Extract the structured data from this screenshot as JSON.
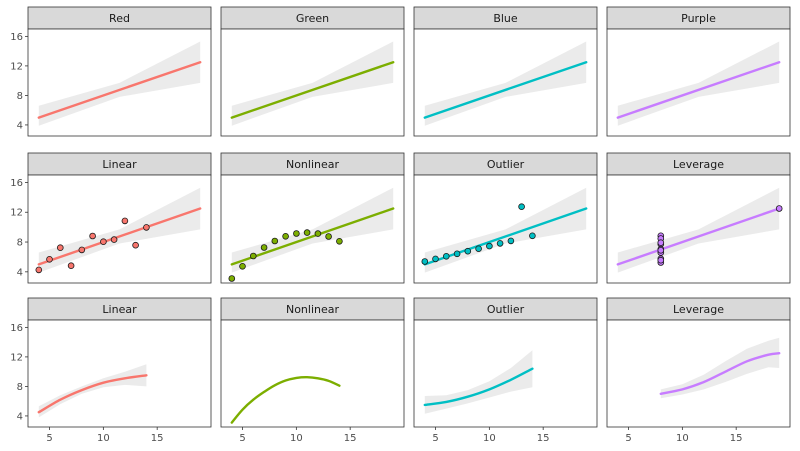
{
  "colors": {
    "red": "#F8766D",
    "green": "#7CAE00",
    "blue": "#00BFC4",
    "purple": "#C77CFF",
    "ribbon": "#EBEBEB",
    "strip": "#D9D9D9",
    "panel_border": "#333333"
  },
  "chart_data": [
    {
      "type": "line",
      "panel": "Red",
      "color": "red",
      "fit": "linear",
      "x": [
        4,
        19
      ],
      "y": [
        5.0,
        12.5
      ],
      "band_x": [
        4,
        11.5,
        19
      ],
      "band_lo": [
        3.9,
        7.8,
        9.7
      ],
      "band_hi": [
        6.6,
        9.7,
        15.3
      ],
      "xlim": [
        3,
        20
      ],
      "ylim": [
        2.5,
        17
      ],
      "yticks": [
        4,
        8,
        12,
        16
      ],
      "xticks": [
        5,
        10,
        15
      ]
    },
    {
      "type": "line",
      "panel": "Green",
      "color": "green",
      "fit": "linear",
      "x": [
        4,
        19
      ],
      "y": [
        5.0,
        12.5
      ],
      "band_x": [
        4,
        11.5,
        19
      ],
      "band_lo": [
        3.9,
        7.8,
        9.7
      ],
      "band_hi": [
        6.6,
        9.7,
        15.3
      ],
      "xlim": [
        3,
        20
      ],
      "ylim": [
        2.5,
        17
      ],
      "yticks": [
        4,
        8,
        12,
        16
      ],
      "xticks": [
        5,
        10,
        15
      ]
    },
    {
      "type": "line",
      "panel": "Blue",
      "color": "blue",
      "fit": "linear",
      "x": [
        4,
        19
      ],
      "y": [
        5.0,
        12.5
      ],
      "band_x": [
        4,
        11.5,
        19
      ],
      "band_lo": [
        3.9,
        7.8,
        9.7
      ],
      "band_hi": [
        6.6,
        9.7,
        15.3
      ],
      "xlim": [
        3,
        20
      ],
      "ylim": [
        2.5,
        17
      ],
      "yticks": [
        4,
        8,
        12,
        16
      ],
      "xticks": [
        5,
        10,
        15
      ]
    },
    {
      "type": "line",
      "panel": "Purple",
      "color": "purple",
      "fit": "linear",
      "x": [
        4,
        19
      ],
      "y": [
        5.0,
        12.5
      ],
      "band_x": [
        4,
        11.5,
        19
      ],
      "band_lo": [
        3.9,
        7.8,
        9.7
      ],
      "band_hi": [
        6.6,
        9.7,
        15.3
      ],
      "xlim": [
        3,
        20
      ],
      "ylim": [
        2.5,
        17
      ],
      "yticks": [
        4,
        8,
        12,
        16
      ],
      "xticks": [
        5,
        10,
        15
      ]
    },
    {
      "type": "scatter",
      "panel": "Linear",
      "color": "red",
      "fit": "linear",
      "points": [
        [
          10,
          8.04
        ],
        [
          8,
          6.95
        ],
        [
          13,
          7.58
        ],
        [
          9,
          8.81
        ],
        [
          11,
          8.33
        ],
        [
          14,
          9.96
        ],
        [
          6,
          7.24
        ],
        [
          4,
          4.26
        ],
        [
          12,
          10.84
        ],
        [
          7,
          4.82
        ],
        [
          5,
          5.68
        ]
      ],
      "x": [
        4,
        19
      ],
      "y": [
        5.0,
        12.5
      ],
      "band_x": [
        4,
        11.5,
        19
      ],
      "band_lo": [
        3.9,
        7.8,
        9.7
      ],
      "band_hi": [
        6.6,
        9.7,
        15.3
      ],
      "xlim": [
        3,
        20
      ],
      "ylim": [
        2.5,
        17
      ],
      "yticks": [
        4,
        8,
        12,
        16
      ],
      "xticks": [
        5,
        10,
        15
      ]
    },
    {
      "type": "scatter",
      "panel": "Nonlinear",
      "color": "green",
      "fit": "linear",
      "points": [
        [
          10,
          9.14
        ],
        [
          8,
          8.14
        ],
        [
          13,
          8.74
        ],
        [
          9,
          8.77
        ],
        [
          11,
          9.26
        ],
        [
          14,
          8.1
        ],
        [
          6,
          6.13
        ],
        [
          4,
          3.1
        ],
        [
          12,
          9.13
        ],
        [
          7,
          7.26
        ],
        [
          5,
          4.74
        ]
      ],
      "x": [
        4,
        19
      ],
      "y": [
        5.0,
        12.5
      ],
      "band_x": [
        4,
        11.5,
        19
      ],
      "band_lo": [
        3.9,
        7.8,
        9.7
      ],
      "band_hi": [
        6.6,
        9.7,
        15.3
      ],
      "xlim": [
        3,
        20
      ],
      "ylim": [
        2.5,
        17
      ],
      "yticks": [
        4,
        8,
        12,
        16
      ],
      "xticks": [
        5,
        10,
        15
      ]
    },
    {
      "type": "scatter",
      "panel": "Outlier",
      "color": "blue",
      "fit": "linear",
      "points": [
        [
          10,
          7.46
        ],
        [
          8,
          6.77
        ],
        [
          13,
          12.74
        ],
        [
          9,
          7.11
        ],
        [
          11,
          7.81
        ],
        [
          14,
          8.84
        ],
        [
          6,
          6.08
        ],
        [
          4,
          5.39
        ],
        [
          12,
          8.15
        ],
        [
          7,
          6.42
        ],
        [
          5,
          5.73
        ]
      ],
      "x": [
        4,
        19
      ],
      "y": [
        5.0,
        12.5
      ],
      "band_x": [
        4,
        11.5,
        19
      ],
      "band_lo": [
        3.9,
        7.8,
        9.7
      ],
      "band_hi": [
        6.6,
        9.7,
        15.3
      ],
      "xlim": [
        3,
        20
      ],
      "ylim": [
        2.5,
        17
      ],
      "yticks": [
        4,
        8,
        12,
        16
      ],
      "xticks": [
        5,
        10,
        15
      ]
    },
    {
      "type": "scatter",
      "panel": "Leverage",
      "color": "purple",
      "fit": "linear",
      "points": [
        [
          8,
          6.58
        ],
        [
          8,
          5.76
        ],
        [
          8,
          7.71
        ],
        [
          8,
          8.84
        ],
        [
          8,
          8.47
        ],
        [
          8,
          7.04
        ],
        [
          8,
          5.25
        ],
        [
          19,
          12.5
        ],
        [
          8,
          5.56
        ],
        [
          8,
          7.91
        ],
        [
          8,
          6.89
        ]
      ],
      "x": [
        4,
        19
      ],
      "y": [
        5.0,
        12.5
      ],
      "band_x": [
        4,
        11.5,
        19
      ],
      "band_lo": [
        3.9,
        7.8,
        9.7
      ],
      "band_hi": [
        6.6,
        9.7,
        15.3
      ],
      "xlim": [
        3,
        20
      ],
      "ylim": [
        2.5,
        17
      ],
      "yticks": [
        4,
        8,
        12,
        16
      ],
      "xticks": [
        5,
        10,
        15
      ]
    },
    {
      "type": "line",
      "panel": "Linear",
      "color": "red",
      "fit": "smooth",
      "x": [
        4,
        6,
        8,
        10,
        12,
        14
      ],
      "y": [
        4.5,
        6.2,
        7.5,
        8.5,
        9.1,
        9.5
      ],
      "band_x": [
        4,
        6,
        8,
        10,
        12,
        14
      ],
      "band_lo": [
        3.8,
        5.6,
        7.0,
        7.9,
        8.2,
        8.0
      ],
      "band_hi": [
        5.3,
        6.8,
        8.0,
        9.1,
        10.0,
        11.0
      ],
      "xlim": [
        3,
        20
      ],
      "ylim": [
        2.5,
        17
      ],
      "yticks": [
        4,
        8,
        12,
        16
      ],
      "xticks": [
        5,
        10,
        15
      ]
    },
    {
      "type": "line",
      "panel": "Nonlinear",
      "color": "green",
      "fit": "smooth",
      "x": [
        4,
        5,
        6,
        7,
        8,
        9,
        10,
        11,
        12,
        13,
        14
      ],
      "y": [
        3.1,
        4.85,
        6.2,
        7.25,
        8.15,
        8.8,
        9.15,
        9.25,
        9.1,
        8.75,
        8.1
      ],
      "xlim": [
        3,
        20
      ],
      "ylim": [
        2.5,
        17
      ],
      "yticks": [
        4,
        8,
        12,
        16
      ],
      "xticks": [
        5,
        10,
        15
      ]
    },
    {
      "type": "line",
      "panel": "Outlier",
      "color": "blue",
      "fit": "smooth",
      "x": [
        4,
        6,
        8,
        10,
        12,
        14
      ],
      "y": [
        5.5,
        5.9,
        6.6,
        7.6,
        8.9,
        10.4
      ],
      "band_x": [
        4,
        6,
        8,
        10,
        12,
        14
      ],
      "band_lo": [
        4.3,
        5.0,
        5.7,
        6.5,
        7.3,
        7.9
      ],
      "band_hi": [
        6.7,
        6.8,
        7.5,
        8.7,
        10.5,
        12.9
      ],
      "xlim": [
        3,
        20
      ],
      "ylim": [
        2.5,
        17
      ],
      "yticks": [
        4,
        8,
        12,
        16
      ],
      "xticks": [
        5,
        10,
        15
      ]
    },
    {
      "type": "line",
      "panel": "Leverage",
      "color": "purple",
      "fit": "smooth",
      "x": [
        8,
        10,
        12,
        14,
        16,
        18,
        19
      ],
      "y": [
        7.0,
        7.6,
        8.6,
        10.0,
        11.4,
        12.3,
        12.5
      ],
      "band_x": [
        8,
        10,
        12,
        14,
        16,
        18,
        19
      ],
      "band_lo": [
        6.4,
        6.9,
        7.6,
        8.6,
        9.7,
        10.6,
        10.5
      ],
      "band_hi": [
        7.6,
        8.3,
        9.6,
        11.4,
        13.1,
        14.2,
        14.6
      ],
      "xlim": [
        3,
        20
      ],
      "ylim": [
        2.5,
        17
      ],
      "yticks": [
        4,
        8,
        12,
        16
      ],
      "xticks": [
        5,
        10,
        15
      ]
    }
  ]
}
